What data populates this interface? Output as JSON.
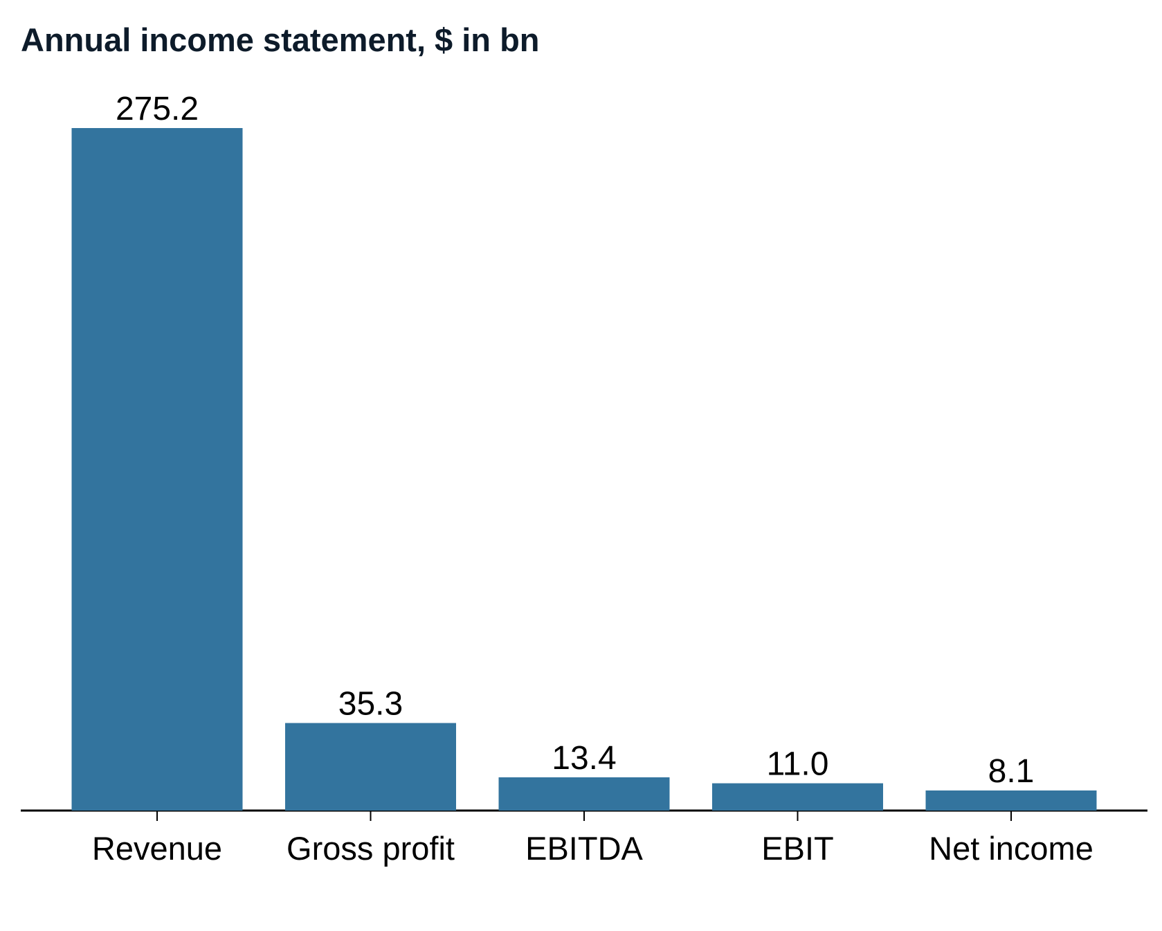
{
  "chart_data": {
    "type": "bar",
    "title": "Annual income statement, $ in bn",
    "categories": [
      "Revenue",
      "Gross profit",
      "EBITDA",
      "EBIT",
      "Net income"
    ],
    "values": [
      275.2,
      35.3,
      13.4,
      11.0,
      8.1
    ],
    "value_labels": [
      "275.2",
      "35.3",
      "13.4",
      "11.0",
      "8.1"
    ],
    "color": "#33749e"
  }
}
